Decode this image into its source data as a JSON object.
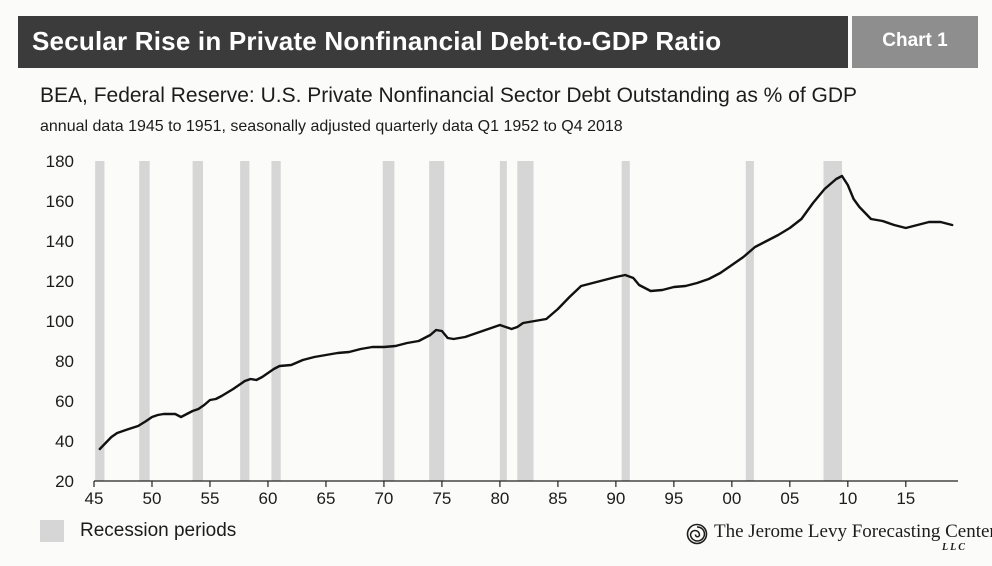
{
  "header": {
    "title": "Secular Rise in Private Nonfinancial Debt-to-GDP Ratio",
    "chart_label": "Chart 1"
  },
  "chart_data": {
    "type": "line",
    "title": "BEA, Federal Reserve: U.S. Private Nonfinancial Sector Debt Outstanding as % of GDP",
    "subtitle": "annual data 1945 to 1951, seasonally adjusted quarterly data Q1 1952 to Q4 2018",
    "xlabel": "",
    "ylabel": "",
    "xlim": [
      1945,
      2019.5
    ],
    "ylim": [
      20,
      180
    ],
    "y_ticks": [
      180,
      160,
      140,
      120,
      100,
      80,
      60,
      40,
      20
    ],
    "x_ticks": [
      {
        "value": 1945,
        "label": "45"
      },
      {
        "value": 1950,
        "label": "50"
      },
      {
        "value": 1955,
        "label": "55"
      },
      {
        "value": 1960,
        "label": "60"
      },
      {
        "value": 1965,
        "label": "65"
      },
      {
        "value": 1970,
        "label": "70"
      },
      {
        "value": 1975,
        "label": "75"
      },
      {
        "value": 1980,
        "label": "80"
      },
      {
        "value": 1985,
        "label": "85"
      },
      {
        "value": 1990,
        "label": "90"
      },
      {
        "value": 1995,
        "label": "95"
      },
      {
        "value": 2000,
        "label": "00"
      },
      {
        "value": 2005,
        "label": "05"
      },
      {
        "value": 2010,
        "label": "10"
      },
      {
        "value": 2015,
        "label": "15"
      }
    ],
    "grid": false,
    "recessions": [
      [
        1945.1,
        1945.9
      ],
      [
        1948.9,
        1949.8
      ],
      [
        1953.5,
        1954.4
      ],
      [
        1957.6,
        1958.4
      ],
      [
        1960.3,
        1961.1
      ],
      [
        1969.9,
        1970.9
      ],
      [
        1973.9,
        1975.2
      ],
      [
        1980.0,
        1980.6
      ],
      [
        1981.5,
        1982.9
      ],
      [
        1990.5,
        1991.2
      ],
      [
        2001.2,
        2001.9
      ],
      [
        2007.9,
        2009.5
      ]
    ],
    "series": [
      {
        "points": [
          [
            1945.5,
            36
          ],
          [
            1946,
            39
          ],
          [
            1946.5,
            42
          ],
          [
            1947,
            44
          ],
          [
            1948,
            46
          ],
          [
            1948.8,
            47.5
          ],
          [
            1949.5,
            50
          ],
          [
            1950,
            52
          ],
          [
            1950.5,
            53
          ],
          [
            1951,
            53.5
          ],
          [
            1952,
            53.5
          ],
          [
            1952.5,
            52
          ],
          [
            1953,
            53.5
          ],
          [
            1953.5,
            55
          ],
          [
            1954,
            56
          ],
          [
            1954.5,
            58
          ],
          [
            1955,
            60.5
          ],
          [
            1955.5,
            61
          ],
          [
            1956,
            62.5
          ],
          [
            1957,
            66
          ],
          [
            1958,
            70
          ],
          [
            1958.5,
            71
          ],
          [
            1959,
            70.5
          ],
          [
            1959.5,
            72
          ],
          [
            1960,
            74
          ],
          [
            1960.5,
            76
          ],
          [
            1961,
            77.5
          ],
          [
            1962,
            78
          ],
          [
            1963,
            80.5
          ],
          [
            1964,
            82
          ],
          [
            1965,
            83
          ],
          [
            1966,
            84
          ],
          [
            1967,
            84.5
          ],
          [
            1968,
            86
          ],
          [
            1969,
            87
          ],
          [
            1970,
            87
          ],
          [
            1971,
            87.5
          ],
          [
            1972,
            89
          ],
          [
            1973,
            90
          ],
          [
            1974,
            93
          ],
          [
            1974.5,
            95.5
          ],
          [
            1975,
            95
          ],
          [
            1975.5,
            91.5
          ],
          [
            1976,
            91
          ],
          [
            1977,
            92
          ],
          [
            1978,
            94
          ],
          [
            1979,
            96
          ],
          [
            1980,
            98
          ],
          [
            1980.5,
            97
          ],
          [
            1981,
            96
          ],
          [
            1981.5,
            97
          ],
          [
            1982,
            99
          ],
          [
            1983,
            100
          ],
          [
            1984,
            101
          ],
          [
            1985,
            106
          ],
          [
            1986,
            112
          ],
          [
            1987,
            117.5
          ],
          [
            1988,
            119
          ],
          [
            1989,
            120.5
          ],
          [
            1990,
            122
          ],
          [
            1990.8,
            123
          ],
          [
            1991.5,
            121.5
          ],
          [
            1992,
            118
          ],
          [
            1993,
            115
          ],
          [
            1994,
            115.5
          ],
          [
            1995,
            117
          ],
          [
            1996,
            117.5
          ],
          [
            1997,
            119
          ],
          [
            1998,
            121
          ],
          [
            1999,
            124
          ],
          [
            2000,
            128
          ],
          [
            2001,
            132
          ],
          [
            2002,
            137
          ],
          [
            2003,
            140
          ],
          [
            2004,
            143
          ],
          [
            2005,
            146.5
          ],
          [
            2006,
            151
          ],
          [
            2007,
            159
          ],
          [
            2008,
            166
          ],
          [
            2009,
            171
          ],
          [
            2009.5,
            172.5
          ],
          [
            2010,
            168
          ],
          [
            2010.5,
            161
          ],
          [
            2011,
            157
          ],
          [
            2012,
            151
          ],
          [
            2013,
            150
          ],
          [
            2014,
            148
          ],
          [
            2015,
            146.5
          ],
          [
            2016,
            148
          ],
          [
            2017,
            149.5
          ],
          [
            2018,
            149.5
          ],
          [
            2019,
            148
          ]
        ]
      }
    ]
  },
  "legend": {
    "label": "Recession periods",
    "swatch_color": "#d6d6d6"
  },
  "branding": {
    "name": "The Jerome Levy Forecasting Center",
    "suffix": "LLC"
  },
  "colors": {
    "line": "#111111",
    "recession": "#d6d6d6",
    "title_bar": "#3b3b3b",
    "tag_bar": "#8e8e8e"
  }
}
